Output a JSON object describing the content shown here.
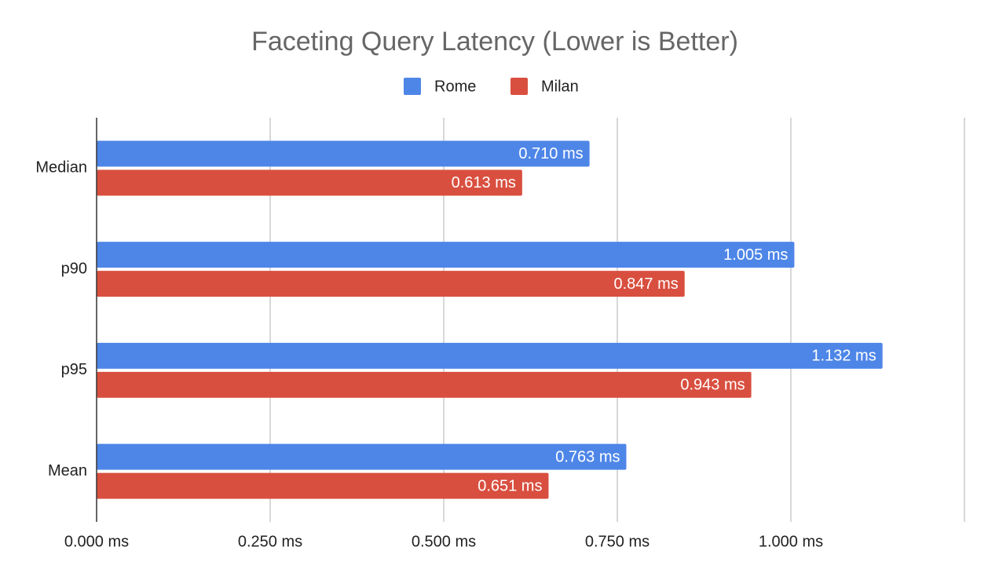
{
  "chart_data": {
    "type": "hbar",
    "title": "Faceting Query Latency (Lower is Better)",
    "categories": [
      "Median",
      "p90",
      "p95",
      "Mean"
    ],
    "series": [
      {
        "name": "Rome",
        "color": "#4e86e8",
        "values": [
          0.71,
          1.005,
          1.132,
          0.763
        ],
        "value_labels": [
          "0.710 ms",
          "1.005 ms",
          "1.132 ms",
          "0.763 ms"
        ]
      },
      {
        "name": "Milan",
        "color": "#d94f3f",
        "values": [
          0.613,
          0.847,
          0.943,
          0.651
        ],
        "value_labels": [
          "0.613 ms",
          "0.847 ms",
          "0.943 ms",
          "0.651 ms"
        ]
      }
    ],
    "xlim": [
      0,
      1.25
    ],
    "xticks": [
      {
        "value": 0,
        "label": "0.000 ms"
      },
      {
        "value": 0.25,
        "label": "0.250 ms"
      },
      {
        "value": 0.5,
        "label": "0.500 ms"
      },
      {
        "value": 0.75,
        "label": "0.750 ms"
      },
      {
        "value": 1.0,
        "label": "1.000 ms"
      }
    ],
    "grid": true,
    "legend": "top"
  }
}
